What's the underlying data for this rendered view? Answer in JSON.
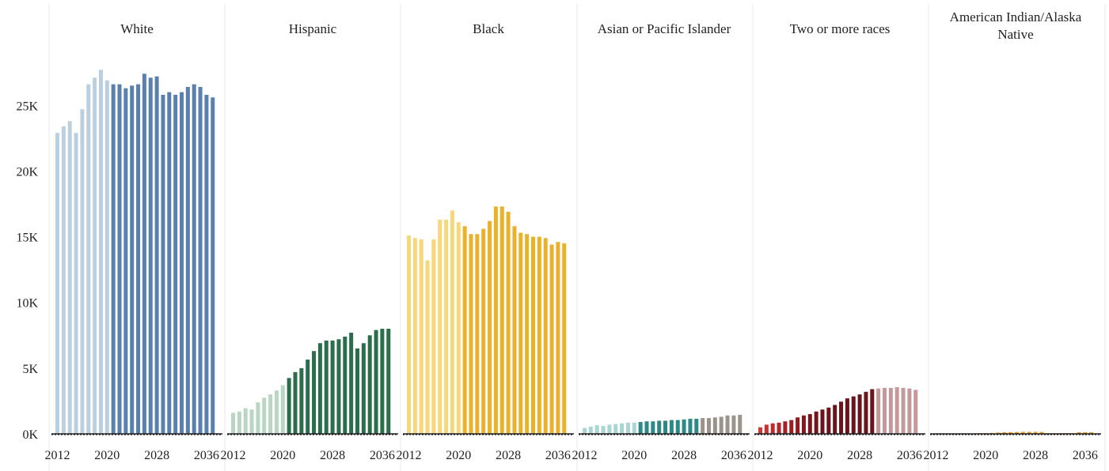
{
  "chart_data": {
    "type": "bar",
    "title": "",
    "xlabel": "",
    "ylabel": "",
    "ylim": [
      0,
      27800
    ],
    "y_ticks": [
      0,
      5000,
      10000,
      15000,
      20000,
      25000
    ],
    "y_tick_labels": [
      "0K",
      "5K",
      "10K",
      "15K",
      "20K",
      "25K"
    ],
    "x": [
      2012,
      2013,
      2014,
      2015,
      2016,
      2017,
      2018,
      2019,
      2020,
      2021,
      2022,
      2023,
      2024,
      2025,
      2026,
      2027,
      2028,
      2029,
      2030,
      2031,
      2032,
      2033,
      2034,
      2035,
      2036,
      2037
    ],
    "x_tick_labels": [
      "2012",
      "2020",
      "2028",
      "2036"
    ],
    "grid": false,
    "panels": [
      {
        "label": "White",
        "values": [
          22900,
          23400,
          23800,
          22900,
          24700,
          26600,
          27100,
          27700,
          26900,
          26600,
          26600,
          26300,
          26500,
          26600,
          27400,
          27100,
          27200,
          25800,
          26000,
          25800,
          26000,
          26400,
          26600,
          26400,
          25800,
          25600
        ],
        "colors": [
          "#bccfdf",
          "#bccfdf",
          "#bccfdf",
          "#bccfdf",
          "#bccfdf",
          "#bccfdf",
          "#bccfdf",
          "#bccfdf",
          "#bccfdf",
          "#5a80ad",
          "#5a80ad",
          "#5a80ad",
          "#5a80ad",
          "#5a80ad",
          "#5a80ad",
          "#5a80ad",
          "#5a80ad",
          "#5a80ad",
          "#5a80ad",
          "#5a80ad",
          "#5a80ad",
          "#5a80ad",
          "#5a80ad",
          "#5a80ad",
          "#5a80ad",
          "#5a80ad"
        ]
      },
      {
        "label": "Hispanic",
        "values": [
          1600,
          1700,
          1950,
          1850,
          2400,
          2750,
          3000,
          3300,
          3700,
          4250,
          4700,
          5000,
          5650,
          6300,
          6900,
          7100,
          7100,
          7200,
          7400,
          7700,
          6500,
          6900,
          7500,
          7900,
          8000,
          8000
        ],
        "colors": [
          "#b9d5c4",
          "#b9d5c4",
          "#b9d5c4",
          "#b9d5c4",
          "#b9d5c4",
          "#b9d5c4",
          "#b9d5c4",
          "#b9d5c4",
          "#b9d5c4",
          "#2a6e4c",
          "#2a6e4c",
          "#2a6e4c",
          "#2a6e4c",
          "#2a6e4c",
          "#2a6e4c",
          "#2a6e4c",
          "#2a6e4c",
          "#2a6e4c",
          "#2a6e4c",
          "#2a6e4c",
          "#2a6e4c",
          "#2a6e4c",
          "#2a6e4c",
          "#2a6e4c",
          "#2a6e4c",
          "#2a6e4c"
        ]
      },
      {
        "label": "Black",
        "values": [
          15100,
          14900,
          14800,
          13200,
          14800,
          16300,
          16300,
          17000,
          16100,
          15800,
          15200,
          15200,
          15600,
          16200,
          17300,
          17300,
          16900,
          15800,
          15300,
          15200,
          15000,
          15000,
          14900,
          14400,
          14600,
          14500
        ],
        "colors": [
          "#f6d87a",
          "#f6d87a",
          "#f6d87a",
          "#f6d87a",
          "#f6d87a",
          "#f6d87a",
          "#f6d87a",
          "#f6d87a",
          "#f6d87a",
          "#eab12a",
          "#eab12a",
          "#eab12a",
          "#eab12a",
          "#eab12a",
          "#eab12a",
          "#eab12a",
          "#eab12a",
          "#eab12a",
          "#eab12a",
          "#eab12a",
          "#eab12a",
          "#eab12a",
          "#eab12a",
          "#eab12a",
          "#eab12a",
          "#eab12a"
        ]
      },
      {
        "label": "Asian or Pacific Islander",
        "values": [
          450,
          550,
          650,
          600,
          700,
          750,
          800,
          850,
          850,
          900,
          950,
          950,
          1000,
          1000,
          1050,
          1050,
          1100,
          1150,
          1150,
          1200,
          1200,
          1250,
          1300,
          1400,
          1400,
          1450
        ],
        "colors": [
          "#a9d6d2",
          "#a9d6d2",
          "#a9d6d2",
          "#a9d6d2",
          "#a9d6d2",
          "#a9d6d2",
          "#a9d6d2",
          "#a9d6d2",
          "#a9d6d2",
          "#2c8a86",
          "#2c8a86",
          "#2c8a86",
          "#2c8a86",
          "#2c8a86",
          "#2c8a86",
          "#2c8a86",
          "#2c8a86",
          "#2c8a86",
          "#2c8a86",
          "#9b9389",
          "#9b9389",
          "#9b9389",
          "#9b9389",
          "#9b9389",
          "#9b9389",
          "#9b9389"
        ]
      },
      {
        "label": "Two or more races",
        "values": [
          500,
          700,
          800,
          850,
          950,
          1050,
          1250,
          1400,
          1500,
          1700,
          1850,
          2000,
          2200,
          2450,
          2700,
          2850,
          3000,
          3200,
          3400,
          3450,
          3500,
          3500,
          3550,
          3500,
          3450,
          3350
        ],
        "colors": [
          "#d03a32",
          "#c8322e",
          "#bd2b2b",
          "#b22528",
          "#a72125",
          "#9c1d23",
          "#911a21",
          "#86181f",
          "#7c161e",
          "#72151d",
          "#6a141c",
          "#6a141c",
          "#6a141c",
          "#6a141c",
          "#6a141c",
          "#6a141c",
          "#6a141c",
          "#6a141c",
          "#6a141c",
          "#c4999c",
          "#c4999c",
          "#c4999c",
          "#c4999c",
          "#c4999c",
          "#c4999c",
          "#c4999c"
        ]
      },
      {
        "label": "American Indian/Alaska Native",
        "values": [
          40,
          40,
          40,
          40,
          40,
          40,
          40,
          50,
          60,
          70,
          100,
          120,
          130,
          140,
          150,
          150,
          150,
          140,
          50,
          50,
          50,
          50,
          50,
          120,
          120,
          120
        ],
        "colors": [
          "#f2a93b",
          "#f2a93b",
          "#f2a93b",
          "#f2a93b",
          "#f2a93b",
          "#f2a93b",
          "#f2a93b",
          "#f2a93b",
          "#f2a93b",
          "#e89a2a",
          "#e89a2a",
          "#e89a2a",
          "#e89a2a",
          "#e89a2a",
          "#e89a2a",
          "#e89a2a",
          "#e89a2a",
          "#e89a2a",
          "#e89a2a",
          "#e89a2a",
          "#e89a2a",
          "#e89a2a",
          "#e89a2a",
          "#e89a2a",
          "#e89a2a",
          "#e89a2a"
        ]
      }
    ],
    "axis_color": "#222222",
    "divider_color": "#e8e8e8"
  }
}
